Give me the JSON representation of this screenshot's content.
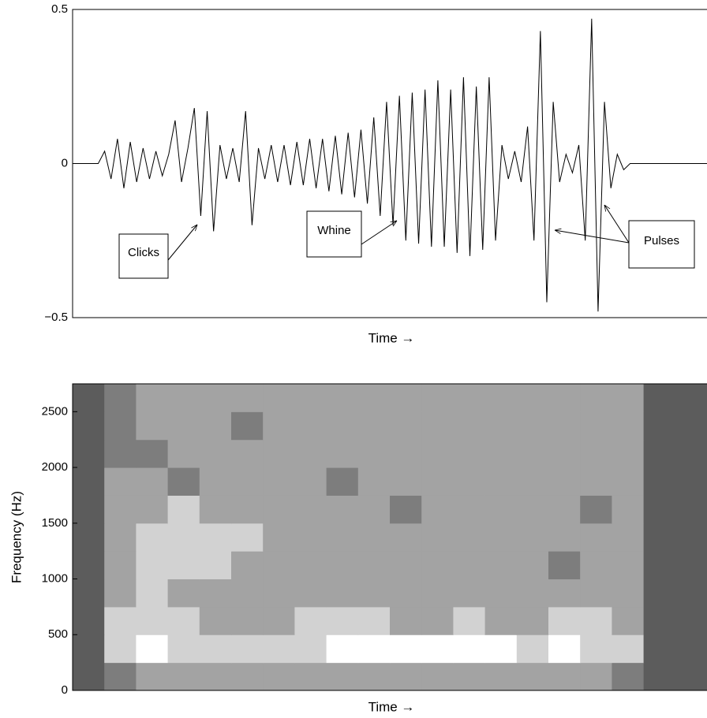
{
  "chart_data": [
    {
      "type": "line",
      "xlabel": "Time →",
      "color": "#000000",
      "ylim": [
        -0.5,
        0.5
      ],
      "yticks": [
        {
          "value": -0.5,
          "label": "−0.5"
        },
        0,
        0.5
      ],
      "values": [
        0,
        0,
        0,
        0,
        0,
        0.04,
        -0.05,
        0.08,
        -0.08,
        0.07,
        -0.06,
        0.05,
        -0.05,
        0.04,
        -0.04,
        0.03,
        0.14,
        -0.06,
        0.05,
        0.18,
        -0.17,
        0.17,
        -0.22,
        0.06,
        -0.05,
        0.05,
        -0.06,
        0.17,
        -0.2,
        0.05,
        -0.05,
        0.06,
        -0.06,
        0.06,
        -0.07,
        0.07,
        -0.07,
        0.08,
        -0.08,
        0.08,
        -0.09,
        0.09,
        -0.1,
        0.1,
        -0.11,
        0.11,
        -0.13,
        0.15,
        -0.17,
        0.2,
        -0.2,
        0.22,
        -0.25,
        0.23,
        -0.26,
        0.24,
        -0.27,
        0.27,
        -0.27,
        0.24,
        -0.29,
        0.28,
        -0.3,
        0.25,
        -0.28,
        0.28,
        -0.25,
        0.06,
        -0.05,
        0.04,
        -0.06,
        0.12,
        -0.25,
        0.43,
        -0.45,
        0.2,
        -0.06,
        0.03,
        -0.03,
        0.06,
        -0.25,
        0.47,
        -0.48,
        0.2,
        -0.08,
        0.03,
        -0.02,
        0,
        0,
        0,
        0,
        0,
        0,
        0,
        0,
        0,
        0,
        0,
        0,
        0
      ],
      "annotations": [
        "Clicks",
        "Whine",
        "Pulses"
      ]
    },
    {
      "type": "heatmap",
      "xlabel": "Time →",
      "ylabel": "Frequency (Hz)",
      "ylim": [
        0,
        2750
      ],
      "yticks": [
        0,
        500,
        1000,
        1500,
        2000,
        2500
      ],
      "level_colors": [
        "#5c5c5c",
        "#7d7d7d",
        "#a3a3a3",
        "#d2d2d2",
        "#ffffff"
      ],
      "z": [
        [
          0,
          1,
          2,
          2,
          2,
          2,
          2,
          2,
          2,
          2,
          2,
          2,
          2,
          2,
          2,
          2,
          2,
          1,
          0,
          0
        ],
        [
          0,
          3,
          4,
          3,
          3,
          3,
          3,
          3,
          4,
          4,
          4,
          4,
          4,
          4,
          3,
          4,
          3,
          3,
          0,
          0
        ],
        [
          0,
          3,
          3,
          3,
          2,
          2,
          2,
          3,
          3,
          3,
          2,
          2,
          3,
          2,
          2,
          3,
          3,
          2,
          0,
          0
        ],
        [
          0,
          2,
          3,
          2,
          2,
          2,
          2,
          2,
          2,
          2,
          2,
          2,
          2,
          2,
          2,
          2,
          2,
          2,
          0,
          0
        ],
        [
          0,
          2,
          3,
          3,
          3,
          2,
          2,
          2,
          2,
          2,
          2,
          2,
          2,
          2,
          2,
          1,
          2,
          2,
          0,
          0
        ],
        [
          0,
          2,
          3,
          3,
          3,
          3,
          2,
          2,
          2,
          2,
          2,
          2,
          2,
          2,
          2,
          2,
          2,
          2,
          0,
          0
        ],
        [
          0,
          2,
          2,
          3,
          2,
          2,
          2,
          2,
          2,
          2,
          1,
          2,
          2,
          2,
          2,
          2,
          1,
          2,
          0,
          0
        ],
        [
          0,
          2,
          2,
          1,
          2,
          2,
          2,
          2,
          1,
          2,
          2,
          2,
          2,
          2,
          2,
          2,
          2,
          2,
          0,
          0
        ],
        [
          0,
          1,
          1,
          2,
          2,
          2,
          2,
          2,
          2,
          2,
          2,
          2,
          2,
          2,
          2,
          2,
          2,
          2,
          0,
          0
        ],
        [
          0,
          1,
          2,
          2,
          2,
          1,
          2,
          2,
          2,
          2,
          2,
          2,
          2,
          2,
          2,
          2,
          2,
          2,
          0,
          0
        ],
        [
          0,
          1,
          2,
          2,
          2,
          2,
          2,
          2,
          2,
          2,
          2,
          2,
          2,
          2,
          2,
          2,
          2,
          2,
          0,
          0
        ]
      ]
    }
  ]
}
